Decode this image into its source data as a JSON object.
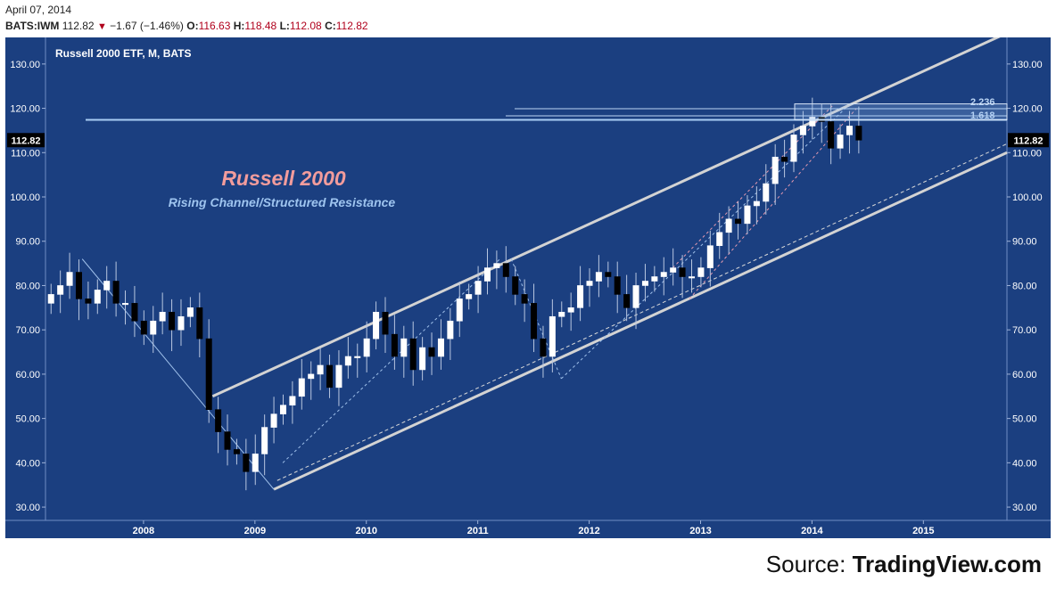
{
  "header": {
    "date": "April 07, 2014",
    "symbol": "BATS:IWM",
    "last": "112.82",
    "change": "−1.67 (−1.46%)",
    "o_label": "O:",
    "o": "116.63",
    "h_label": "H:",
    "h": "118.48",
    "l_label": "L:",
    "l": "112.08",
    "c_label": "C:",
    "c": "112.82"
  },
  "chart_title": "Russell 2000 ETF, M, BATS",
  "annotation_title": "Russell 2000",
  "annotation_subtitle": "Rising Channel/Structured Resistance",
  "fib_labels": [
    "2.236",
    "1.618"
  ],
  "source_prefix": "Source: ",
  "source_brand": "TradingView.com",
  "colors": {
    "background": "#1b3f80",
    "up_candle": "#ffffff",
    "down_candle": "#000000",
    "channel": "#d3d3d3",
    "title_annotation": "#f29c9c",
    "subtitle_annotation": "#9ec4ef"
  },
  "chart_data": {
    "type": "candlestick",
    "timeframe": "monthly",
    "y_ticks": [
      30,
      40,
      50,
      60,
      70,
      80,
      90,
      100,
      110,
      120,
      130
    ],
    "y_tick_labels": [
      "30.00",
      "40.00",
      "50.00",
      "60.00",
      "70.00",
      "80.00",
      "90.00",
      "100.00",
      "110.00",
      "120.00",
      "130.00"
    ],
    "ylim": [
      27,
      136
    ],
    "x_labels": [
      "2008",
      "2009",
      "2010",
      "2011",
      "2012",
      "2013",
      "2014",
      "2015"
    ],
    "x_range": [
      2007.12,
      2015.75
    ],
    "last_price_label": "112.82",
    "last_price": 112.82,
    "closes": [
      78,
      80,
      83,
      77,
      76,
      79,
      81,
      76,
      76,
      72,
      69,
      72,
      74,
      70,
      73,
      75,
      68,
      52,
      47,
      43,
      42,
      38,
      42,
      48,
      51,
      53,
      55,
      59,
      60,
      62,
      57,
      62,
      64,
      64,
      68,
      74,
      69,
      64,
      68,
      61,
      66,
      64,
      68,
      72,
      77,
      78,
      81,
      84,
      85,
      82,
      78,
      76,
      68,
      64,
      73,
      74,
      75,
      80,
      81,
      83,
      82,
      78,
      75,
      80,
      81,
      82,
      83,
      84,
      82,
      82,
      84,
      89,
      92,
      95,
      94,
      98,
      99,
      103,
      109,
      108,
      114,
      116,
      118,
      117,
      111,
      114,
      116,
      112.82
    ],
    "resistance_line": {
      "x": [
        2008.62,
        2015.75
      ],
      "y": [
        55,
        137
      ]
    },
    "support_line": {
      "x": [
        2009.17,
        2015.75
      ],
      "y": [
        34,
        110
      ]
    },
    "fib_lines": [
      {
        "label": "2.236",
        "value": 119.9
      },
      {
        "label": "1.618",
        "value": 118.3
      }
    ],
    "horizontal_resistance": 117.4,
    "resistance_zone": [
      117.4,
      121
    ]
  }
}
